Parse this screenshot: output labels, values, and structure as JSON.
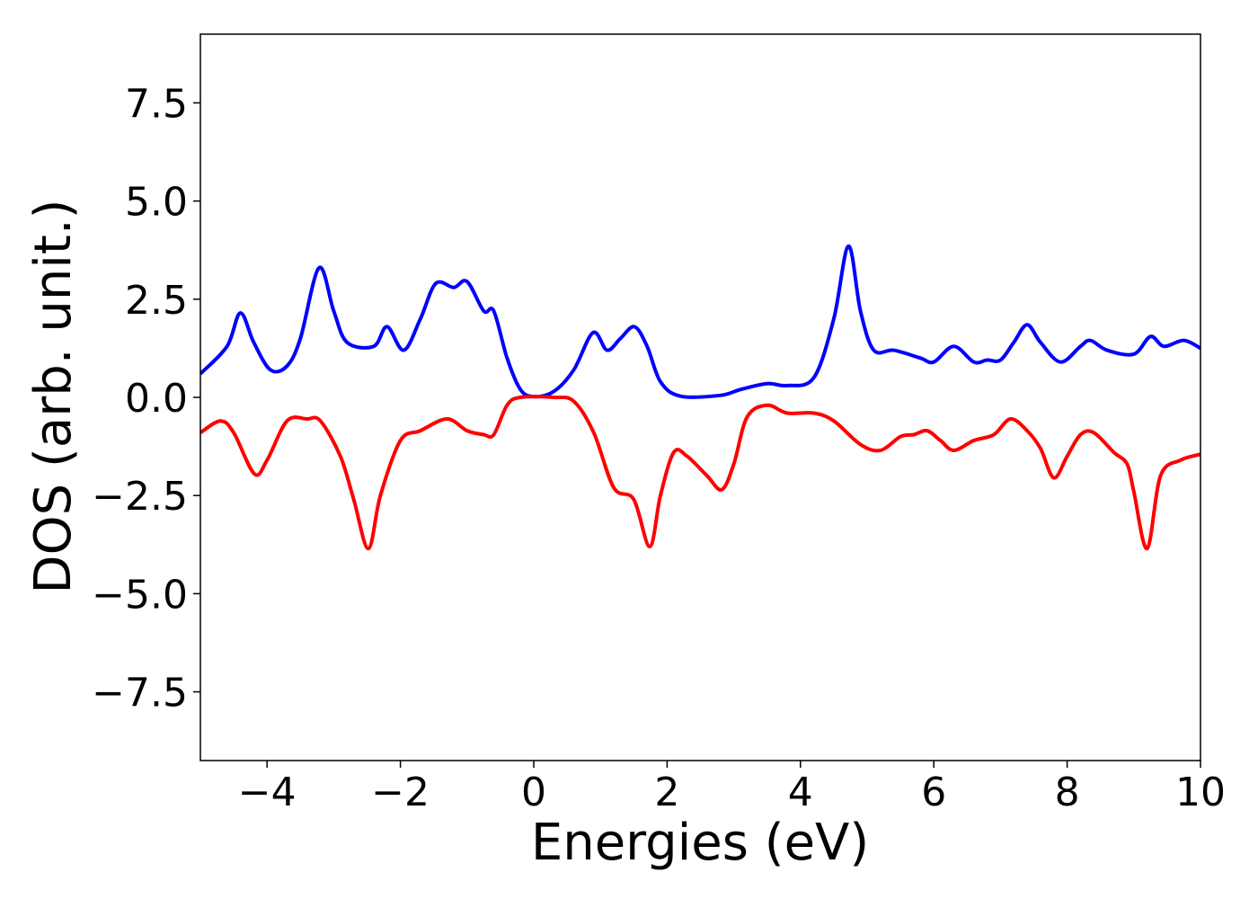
{
  "chart_data": {
    "type": "line",
    "x_label": "Energies (eV)",
    "y_label": "DOS (arb. unit.)",
    "xlim": [
      -5,
      10
    ],
    "ylim": [
      -9.25,
      9.25
    ],
    "xticks": [
      {
        "value": -4,
        "label": "−4"
      },
      {
        "value": -2,
        "label": "−2"
      },
      0,
      2,
      4,
      6,
      8,
      10
    ],
    "yticks": [
      {
        "value": -7.5,
        "label": "−7.5"
      },
      {
        "value": -5,
        "label": "−5.0"
      },
      {
        "value": -2.5,
        "label": "−2.5"
      },
      {
        "value": 0,
        "label": "0.0"
      },
      2.5,
      {
        "value": 5,
        "label": "5.0"
      },
      7.5
    ],
    "series": [
      {
        "color": "#0000ff",
        "x": [
          -5,
          -4.6,
          -4.4,
          -4.2,
          -3.95,
          -3.7,
          -3.5,
          -3.22,
          -3.0,
          -2.8,
          -2.4,
          -2.2,
          -1.95,
          -1.7,
          -1.47,
          -1.2,
          -1.0,
          -0.75,
          -0.6,
          -0.4,
          -0.2,
          0,
          0.3,
          0.6,
          0.89,
          1.1,
          1.3,
          1.51,
          1.7,
          1.9,
          2.2,
          2.8,
          3.1,
          3.5,
          3.8,
          4.2,
          4.5,
          4.72,
          4.9,
          5.1,
          5.4,
          5.8,
          6.0,
          6.3,
          6.6,
          6.8,
          7.0,
          7.2,
          7.4,
          7.6,
          7.9,
          8.2,
          8.35,
          8.6,
          9.0,
          9.25,
          9.45,
          9.75,
          10
        ],
        "values": [
          0.6,
          1.3,
          2.15,
          1.4,
          0.7,
          0.8,
          1.5,
          3.3,
          2.2,
          1.4,
          1.3,
          1.8,
          1.2,
          2.0,
          2.9,
          2.8,
          2.95,
          2.2,
          2.2,
          1.0,
          0.2,
          0.02,
          0.15,
          0.7,
          1.65,
          1.2,
          1.5,
          1.8,
          1.3,
          0.4,
          0.03,
          0.05,
          0.2,
          0.35,
          0.3,
          0.5,
          2.0,
          3.85,
          2.2,
          1.2,
          1.2,
          1.0,
          0.9,
          1.3,
          0.9,
          0.95,
          0.95,
          1.4,
          1.85,
          1.4,
          0.9,
          1.3,
          1.45,
          1.2,
          1.1,
          1.55,
          1.3,
          1.45,
          1.25
        ]
      },
      {
        "color": "#ff0000",
        "x": [
          -5,
          -4.7,
          -4.5,
          -4.19,
          -4.0,
          -3.7,
          -3.4,
          -3.2,
          -2.9,
          -2.7,
          -2.48,
          -2.3,
          -2.0,
          -1.7,
          -1.3,
          -1.0,
          -0.75,
          -0.6,
          -0.4,
          -0.2,
          0.3,
          0.6,
          0.9,
          1.2,
          1.5,
          1.74,
          1.9,
          2.1,
          2.3,
          2.6,
          2.82,
          3.0,
          3.2,
          3.5,
          3.8,
          4.2,
          4.5,
          4.9,
          5.2,
          5.5,
          5.7,
          5.9,
          6.1,
          6.3,
          6.6,
          6.9,
          7.15,
          7.4,
          7.6,
          7.8,
          8.0,
          8.2,
          8.4,
          8.7,
          8.9,
          9.0,
          9.2,
          9.4,
          9.7,
          10
        ],
        "values": [
          -0.9,
          -0.6,
          -0.9,
          -1.95,
          -1.6,
          -0.6,
          -0.55,
          -0.6,
          -1.5,
          -2.6,
          -3.85,
          -2.5,
          -1.1,
          -0.85,
          -0.55,
          -0.85,
          -0.95,
          -0.95,
          -0.2,
          0,
          0,
          -0.1,
          -0.9,
          -2.3,
          -2.6,
          -3.8,
          -2.5,
          -1.4,
          -1.5,
          -2.0,
          -2.35,
          -1.7,
          -0.5,
          -0.2,
          -0.4,
          -0.4,
          -0.6,
          -1.2,
          -1.35,
          -1.0,
          -0.95,
          -0.85,
          -1.1,
          -1.35,
          -1.1,
          -0.95,
          -0.55,
          -0.85,
          -1.3,
          -2.05,
          -1.5,
          -0.95,
          -0.9,
          -1.4,
          -1.7,
          -2.4,
          -3.85,
          -2.0,
          -1.6,
          -1.45
        ]
      }
    ]
  }
}
